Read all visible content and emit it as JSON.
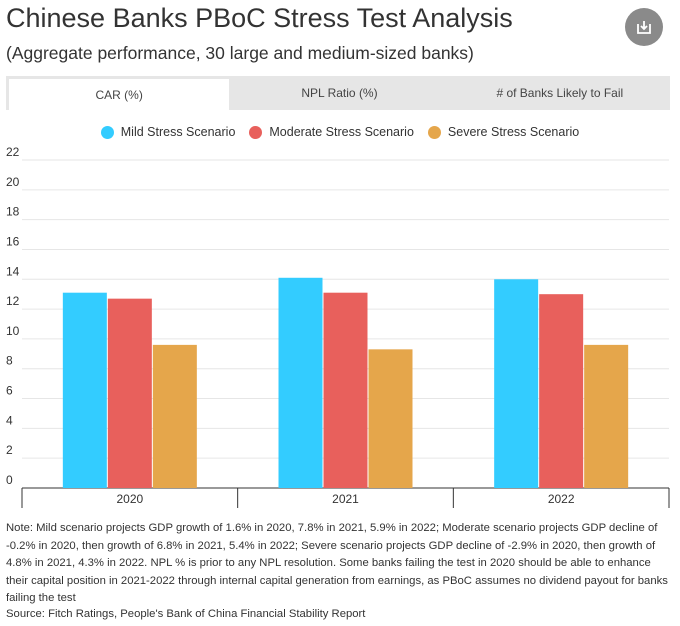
{
  "header": {
    "title": "Chinese Banks PBoC Stress Test Analysis",
    "subtitle": "(Aggregate performance, 30 large and medium-sized banks)",
    "download_icon": "download-icon"
  },
  "tabs": [
    {
      "label": "CAR (%)",
      "active": true
    },
    {
      "label": "NPL Ratio (%)",
      "active": false
    },
    {
      "label": "# of Banks Likely to Fail",
      "active": false
    }
  ],
  "colors": {
    "mild": "#33ccff",
    "moderate": "#e8605c",
    "severe": "#e5a64b",
    "grid": "#e6e6e6",
    "axis": "#333333"
  },
  "chart_data": {
    "type": "bar",
    "title": "",
    "xlabel": "",
    "ylabel": "",
    "categories": [
      "2020",
      "2021",
      "2022"
    ],
    "series": [
      {
        "name": "Mild Stress Scenario",
        "values": [
          13.1,
          14.1,
          14.0
        ]
      },
      {
        "name": "Moderate Stress Scenario",
        "values": [
          12.7,
          13.1,
          13.0
        ]
      },
      {
        "name": "Severe Stress Scenario",
        "values": [
          9.6,
          9.3,
          9.6
        ]
      }
    ],
    "ylim": [
      0,
      22
    ],
    "yticks": [
      "0",
      "2",
      "4",
      "6",
      "8",
      "10",
      "12",
      "14",
      "16",
      "18",
      "20",
      "22"
    ],
    "grid": true,
    "legend_position": "top-center"
  },
  "footer": {
    "note": "Note: Mild scenario projects GDP growth of 1.6% in 2020, 7.8% in 2021, 5.9% in 2022; Moderate scenario projects GDP decline of -0.2% in 2020, then growth of 6.8% in 2021, 5.4% in 2022; Severe scenario projects GDP decline of -2.9% in 2020, then growth of 4.8% in 2021, 4.3% in 2022. NPL % is prior to any NPL resolution. Some banks failing the test in 2020 should be able to enhance their capital position in 2021-2022 through internal capital generation from earnings, as PBoC assumes no dividend payout for banks failing the test",
    "source": "Source: Fitch Ratings, People's Bank of China Financial Stability Report"
  }
}
